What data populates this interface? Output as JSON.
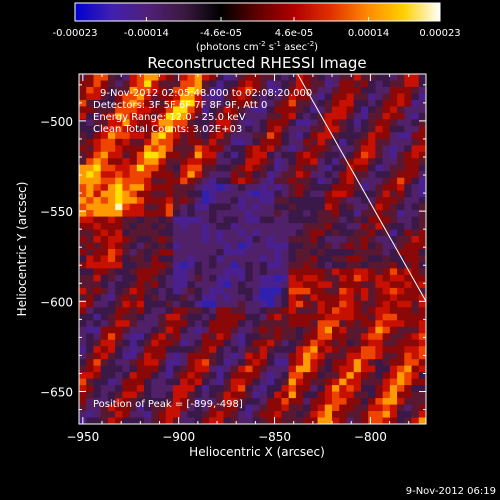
{
  "colorbar": {
    "ticks": [
      {
        "label": "-0.00023",
        "value": -0.00023
      },
      {
        "label": "-0.00014",
        "value": -0.00014
      },
      {
        "label": "-4.6e-05",
        "value": -4.6e-05
      },
      {
        "label": "4.6e-05",
        "value": 4.6e-05
      },
      {
        "label": "0.00014",
        "value": 0.00014
      },
      {
        "label": "0.00023",
        "value": 0.00023
      }
    ],
    "range": [
      -0.00023,
      0.00023
    ],
    "units_prefix": "(photons cm",
    "units_sup1": "-2",
    "units_mid": " s",
    "units_sup2": "-1",
    "units_suffix": " asec",
    "units_sup3": "-2",
    "units_close": ")",
    "colors": [
      "#0000d0",
      "#4020b0",
      "#502078",
      "#3a1840",
      "#000000",
      "#600000",
      "#b00000",
      "#e03000",
      "#ff8800",
      "#ffd000",
      "#ffffff"
    ]
  },
  "chart_data": {
    "type": "heatmap",
    "title": "Reconstructed RHESSI Image",
    "xlabel": "Heliocentric X (arcsec)",
    "ylabel": "Heliocentric Y (arcsec)",
    "xlim": [
      -952,
      -771
    ],
    "ylim": [
      -668,
      -474
    ],
    "x_ticks": [
      -950,
      -900,
      -850,
      -800
    ],
    "y_ticks": [
      -500,
      -550,
      -600,
      -650
    ],
    "limb_line": [
      [
        -838,
        -474
      ],
      [
        -771,
        -600
      ]
    ],
    "peak_position": [
      -899,
      -498
    ],
    "grid": false,
    "colormap": "rhessi blue-purple-red-yellow"
  },
  "annotations": {
    "line1": "9-Nov-2012 02:05:48.000 to 02:08:20.000",
    "line2": "Detectors: 3F 5F 6F 7F 8F 9F, Att 0",
    "line3": "Energy Range: 12.0 - 25.0 keV",
    "line4": "Clean    Total Counts: 3.02E+03",
    "peak": "Position of Peak = [-899,-498]"
  },
  "footer_timestamp": "9-Nov-2012 06:19"
}
